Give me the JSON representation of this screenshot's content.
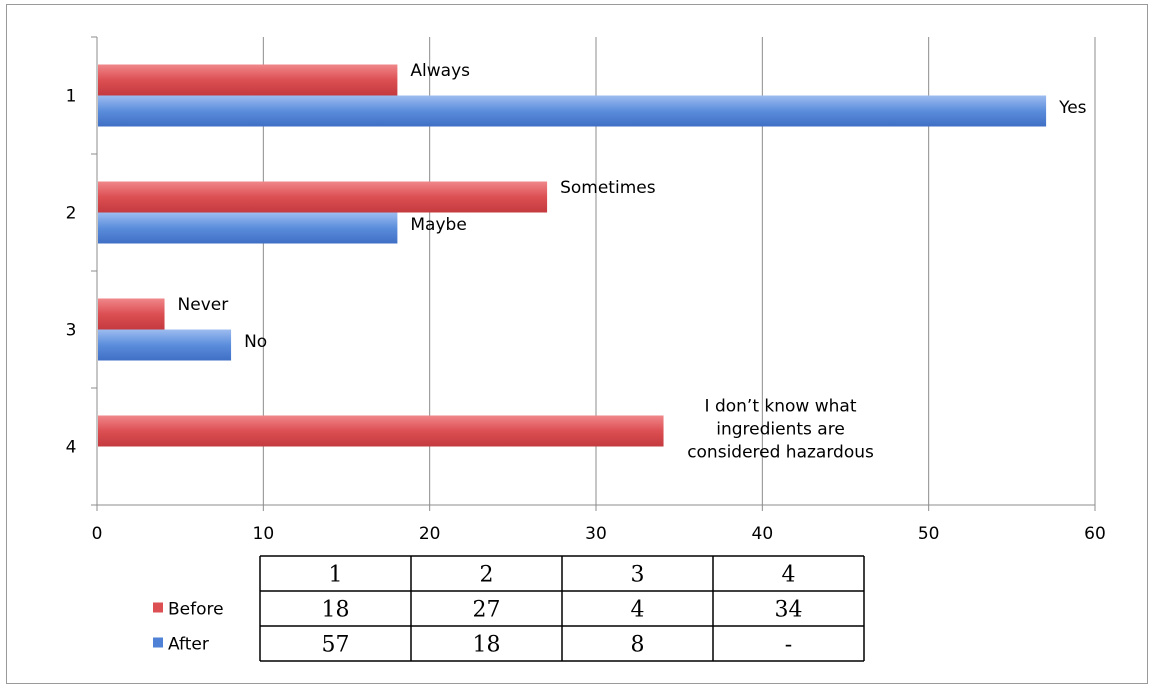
{
  "chart_data": {
    "type": "bar",
    "orientation": "horizontal",
    "categories": [
      "1",
      "2",
      "3",
      "4"
    ],
    "series": [
      {
        "name": "Before",
        "color": "#dc4f53",
        "values": [
          18,
          27,
          4,
          34
        ],
        "bar_labels": [
          "Always",
          "Sometimes",
          "Never",
          "I don’t know what ingredients are considered hazardous"
        ]
      },
      {
        "name": "After",
        "color": "#4f81d6",
        "values": [
          57,
          18,
          8,
          null
        ],
        "bar_labels": [
          "Yes",
          "Maybe",
          "No",
          ""
        ]
      }
    ],
    "xlim": [
      0,
      60
    ],
    "xticks": [
      0,
      10,
      20,
      30,
      40,
      50,
      60
    ],
    "grid": "vertical",
    "legend_placement": "bottom-left"
  },
  "data_table": {
    "header": [
      "1",
      "2",
      "3",
      "4"
    ],
    "rows": [
      {
        "series": "Before",
        "cells": [
          "18",
          "27",
          "4",
          "34"
        ]
      },
      {
        "series": "After",
        "cells": [
          "57",
          "18",
          "8",
          "-"
        ]
      }
    ]
  }
}
